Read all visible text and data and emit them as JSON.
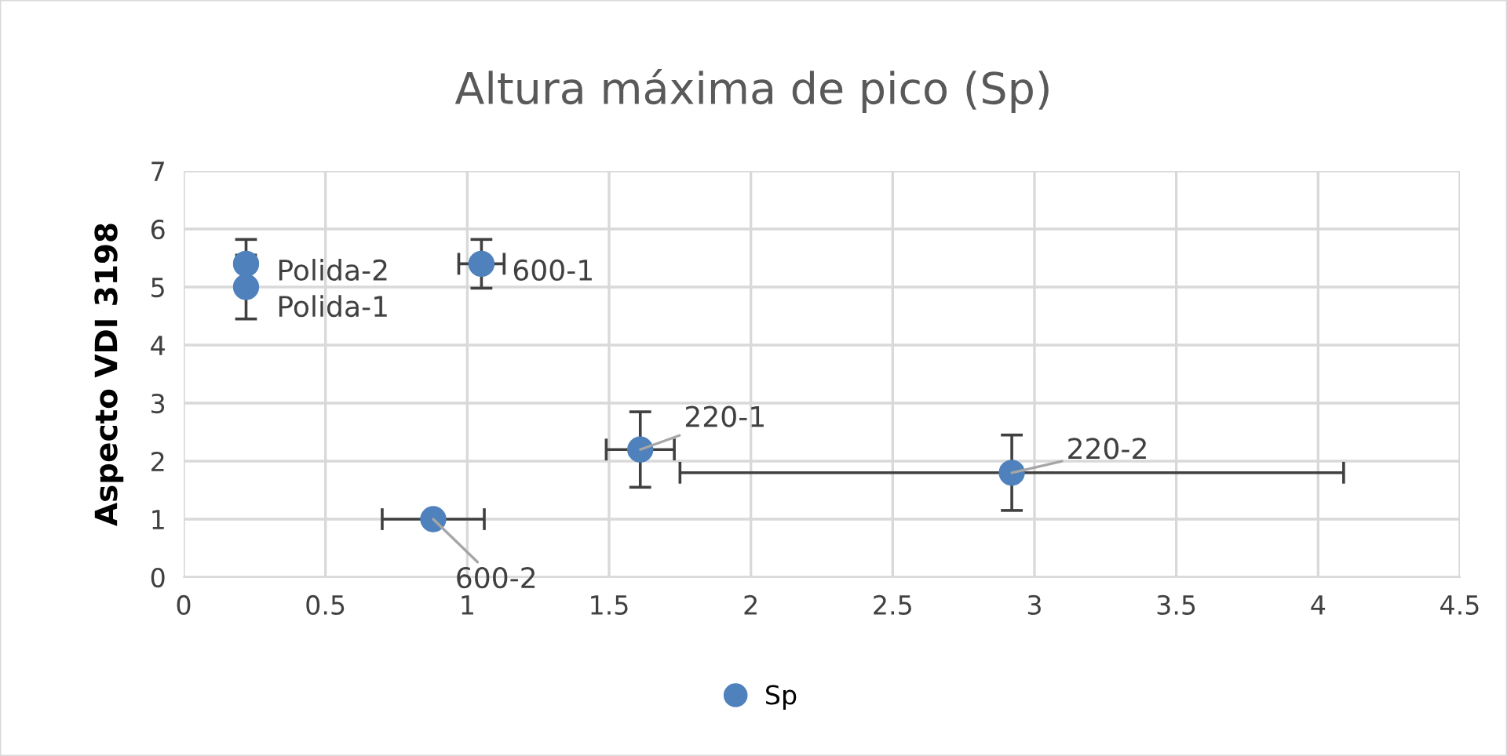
{
  "chart_data": {
    "type": "scatter",
    "title": "Altura máxima de pico (Sp)",
    "ylabel": "Aspecto VDI 3198",
    "xlim": [
      0,
      4.5
    ],
    "xticks": [
      0,
      0.5,
      1,
      1.5,
      2,
      2.5,
      3,
      3.5,
      4,
      4.5
    ],
    "ylim": [
      0,
      7
    ],
    "yticks": [
      0,
      1,
      2,
      3,
      4,
      5,
      6,
      7
    ],
    "grid": true,
    "legend": "bottom",
    "marker": "circle",
    "series": [
      {
        "name": "Sp",
        "color": "#4f81bd",
        "x": [
          0.22,
          0.22,
          1.05,
          0.88,
          1.61,
          2.92
        ],
        "values": [
          5.0,
          5.4,
          5.4,
          1.0,
          2.2,
          1.8
        ],
        "errors": [
          0.55,
          0.42,
          0.42,
          null,
          0.65,
          0.65
        ],
        "xerrors": [
          null,
          null,
          0.08,
          0.18,
          0.12,
          1.17
        ]
      }
    ],
    "annotations": [
      {
        "text": "Polida-1",
        "x": 0.22,
        "y": 5.0
      },
      {
        "text": "Polida-2",
        "x": 0.22,
        "y": 5.4
      },
      {
        "text": "600-1",
        "x": 1.05,
        "y": 5.4
      },
      {
        "text": "600-2",
        "x": 0.88,
        "y": 1.0
      },
      {
        "text": "220-1",
        "x": 1.61,
        "y": 2.2
      },
      {
        "text": "220-2",
        "x": 2.92,
        "y": 1.8
      }
    ]
  }
}
